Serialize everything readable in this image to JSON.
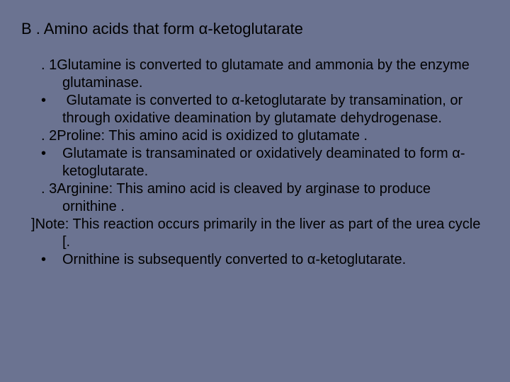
{
  "background_color": "#6b7391",
  "text_color": "#000000",
  "title_fontsize": 22,
  "body_fontsize": 20,
  "title": "B . Amino acids that form α-ketoglutarate",
  "lines": [
    {
      "marker": ". 1",
      "text": "Glutamine is converted to glutamate and ammonia by the enzyme glutaminase."
    },
    {
      "marker": "bullet",
      "text": " Glutamate is converted to α-ketoglutarate by transamination, or through oxidative deamination by glutamate dehydrogenase."
    },
    {
      "marker": ". 2",
      "text": "Proline: This amino acid is oxidized to glutamate ."
    },
    {
      "marker": "bullet",
      "text": "Glutamate is transaminated or oxidatively deaminated to form α-ketoglutarate."
    },
    {
      "marker": ". 3",
      "text": "Arginine: This amino acid is cleaved by arginase to produce ornithine ."
    },
    {
      "marker": "]",
      "text": "Note: This reaction occurs primarily in the liver as part of the urea cycle [."
    },
    {
      "marker": "bullet",
      "text": "Ornithine is subsequently converted to α-ketoglutarate."
    }
  ]
}
